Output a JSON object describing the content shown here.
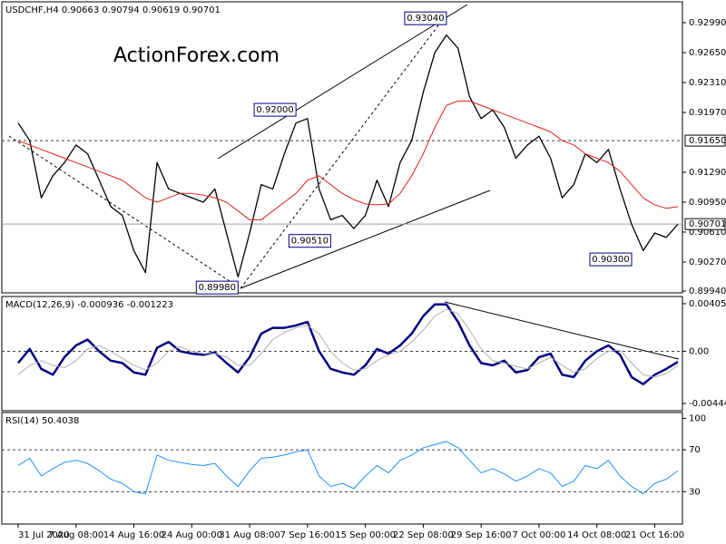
{
  "chart_data": [
    {
      "type": "line",
      "title": "USDCHF,H4 0.90663 0.90794 0.90619 0.90701",
      "watermark": "ActionForex.com",
      "ylim": [
        0.8993,
        0.93217
      ],
      "yticks": [
        {
          "value": 0.9299,
          "label": "0.92990"
        },
        {
          "value": 0.9265,
          "label": "0.92650"
        },
        {
          "value": 0.9231,
          "label": "0.92310"
        },
        {
          "value": 0.9197,
          "label": "0.91970"
        },
        {
          "value": 0.9129,
          "label": "0.91290"
        },
        {
          "value": 0.9095,
          "label": "0.90950"
        },
        {
          "value": 0.9061,
          "label": "0.90610"
        },
        {
          "value": 0.9027,
          "label": "0.90270"
        },
        {
          "value": 0.8994,
          "label": "0.89940"
        }
      ],
      "levels": [
        {
          "value": 0.9165,
          "label": "0.91650",
          "style": "dashed"
        },
        {
          "value": 0.90701,
          "label": "0.90701",
          "style": "solid"
        }
      ],
      "series": [
        {
          "name": "Close",
          "color": "#000000",
          "width": 1.3,
          "values": [
            0.9185,
            0.9165,
            0.91,
            0.9125,
            0.914,
            0.916,
            0.915,
            0.912,
            0.909,
            0.908,
            0.904,
            0.9015,
            0.914,
            0.911,
            0.9105,
            0.91,
            0.9095,
            0.911,
            0.906,
            0.901,
            0.906,
            0.9115,
            0.911,
            0.915,
            0.9185,
            0.919,
            0.911,
            0.9075,
            0.908,
            0.9065,
            0.908,
            0.912,
            0.909,
            0.914,
            0.9165,
            0.922,
            0.9265,
            0.9285,
            0.927,
            0.9215,
            0.919,
            0.92,
            0.918,
            0.9145,
            0.916,
            0.917,
            0.9145,
            0.91,
            0.9115,
            0.915,
            0.914,
            0.9155,
            0.911,
            0.907,
            0.904,
            0.906,
            0.9055,
            0.907
          ]
        },
        {
          "name": "MA",
          "color": "#e02020",
          "width": 1,
          "values": [
            0.9165,
            0.916,
            0.9155,
            0.915,
            0.9145,
            0.914,
            0.9135,
            0.913,
            0.9125,
            0.912,
            0.911,
            0.91,
            0.9095,
            0.91,
            0.9105,
            0.9105,
            0.9103,
            0.91,
            0.9095,
            0.9085,
            0.9075,
            0.9075,
            0.9085,
            0.9095,
            0.9105,
            0.912,
            0.9125,
            0.9115,
            0.9105,
            0.9098,
            0.9093,
            0.9092,
            0.9093,
            0.9105,
            0.9125,
            0.915,
            0.918,
            0.9205,
            0.921,
            0.921,
            0.9205,
            0.92,
            0.9195,
            0.919,
            0.9185,
            0.918,
            0.9175,
            0.9165,
            0.916,
            0.915,
            0.9145,
            0.914,
            0.913,
            0.9115,
            0.91,
            0.9092,
            0.9088,
            0.909
          ]
        }
      ],
      "annotations": [
        {
          "x": 37,
          "value": 0.9304,
          "label": "0.93040"
        },
        {
          "x": 24,
          "value": 0.92,
          "label": "0.92000"
        },
        {
          "x": 27,
          "value": 0.9051,
          "label": "0.90510"
        },
        {
          "x": 19,
          "value": 0.8998,
          "label": "0.89980"
        },
        {
          "x": 53,
          "value": 0.903,
          "label": "0.90300"
        }
      ]
    },
    {
      "type": "line",
      "title": "MACD(12,26,9) -0.000936 -0.001223",
      "ylim": [
        -0.00499,
        0.00444
      ],
      "yticks": [
        0.004053,
        {
          "value": 0,
          "label": "0.00"
        },
        -0.004449
      ],
      "levels": [
        {
          "value": 0,
          "style": "dashed"
        }
      ],
      "series": [
        {
          "name": "MACD",
          "color": "#000080",
          "width": 2.5,
          "values": [
            -0.001,
            0.0002,
            -0.0015,
            -0.002,
            -0.0005,
            0.0005,
            0.001,
            0.0,
            -0.0008,
            -0.001,
            -0.0018,
            -0.002,
            0.0003,
            0.0008,
            0.0,
            -0.0002,
            -0.0003,
            -0.0001,
            -0.001,
            -0.0018,
            -0.0005,
            0.0015,
            0.002,
            0.002,
            0.0022,
            0.0025,
            0.0,
            -0.0015,
            -0.0018,
            -0.002,
            -0.0012,
            0.0002,
            -0.0002,
            0.0005,
            0.0015,
            0.003,
            0.004,
            0.004,
            0.0025,
            0.0005,
            -0.001,
            -0.0012,
            -0.0008,
            -0.0018,
            -0.0016,
            -0.0005,
            -0.0002,
            -0.002,
            -0.0022,
            -0.0008,
            0.0,
            0.0005,
            -0.0003,
            -0.0022,
            -0.0028,
            -0.002,
            -0.0015,
            -0.0009
          ]
        },
        {
          "name": "Signal",
          "color": "#b0b0b0",
          "width": 1,
          "values": [
            -0.002,
            -0.0012,
            -0.0008,
            -0.0012,
            -0.0014,
            -0.0008,
            0.0002,
            0.0005,
            0.0,
            -0.0006,
            -0.0012,
            -0.0016,
            -0.001,
            0.0,
            0.0004,
            0.0,
            -0.0002,
            -0.0002,
            -0.0005,
            -0.0012,
            -0.0012,
            -0.0002,
            0.001,
            0.0016,
            0.002,
            0.0022,
            0.0015,
            0.0,
            -0.001,
            -0.0016,
            -0.0015,
            -0.0008,
            -0.0003,
            0.0,
            0.0008,
            0.0018,
            0.003,
            0.0036,
            0.0032,
            0.0018,
            0.0002,
            -0.0008,
            -0.001,
            -0.0013,
            -0.0015,
            -0.001,
            -0.0005,
            -0.0012,
            -0.0018,
            -0.0015,
            -0.0006,
            0.0,
            0.0001,
            -0.001,
            -0.002,
            -0.0022,
            -0.0019,
            -0.0012
          ]
        }
      ]
    },
    {
      "type": "line",
      "title": "RSI(14) 50.4038",
      "ylim": [
        0,
        103
      ],
      "yticks": [
        100,
        70,
        30
      ],
      "levels": [
        {
          "value": 70,
          "style": "dashed"
        },
        {
          "value": 30,
          "style": "dashed"
        }
      ],
      "series": [
        {
          "name": "RSI",
          "color": "#1e90ff",
          "width": 1,
          "values": [
            55,
            62,
            45,
            52,
            58,
            60,
            57,
            50,
            42,
            38,
            30,
            28,
            65,
            60,
            58,
            56,
            55,
            57,
            45,
            35,
            50,
            62,
            63,
            65,
            68,
            70,
            45,
            35,
            38,
            33,
            45,
            55,
            48,
            60,
            65,
            72,
            75,
            78,
            72,
            60,
            48,
            52,
            47,
            40,
            45,
            52,
            48,
            35,
            40,
            55,
            52,
            60,
            45,
            35,
            28,
            38,
            42,
            50
          ]
        }
      ],
      "categories": [
        "31 Jul 2020",
        null,
        null,
        null,
        null,
        "7 Aug 08:00",
        null,
        null,
        null,
        null,
        "14 Aug 16:00",
        null,
        null,
        null,
        null,
        "24 Aug 00:00",
        null,
        null,
        null,
        null,
        "31 Aug 08:00",
        null,
        null,
        null,
        null,
        "7 Sep 16:00",
        null,
        null,
        null,
        null,
        "15 Sep 00:00",
        null,
        null,
        null,
        null,
        "22 Sep 08:00",
        null,
        null,
        null,
        null,
        "29 Sep 16:00",
        null,
        null,
        null,
        null,
        "7 Oct 00:00",
        null,
        null,
        null,
        null,
        "14 Oct 08:00",
        null,
        null,
        null,
        null,
        "21 Oct 16:00",
        null,
        null
      ]
    }
  ]
}
